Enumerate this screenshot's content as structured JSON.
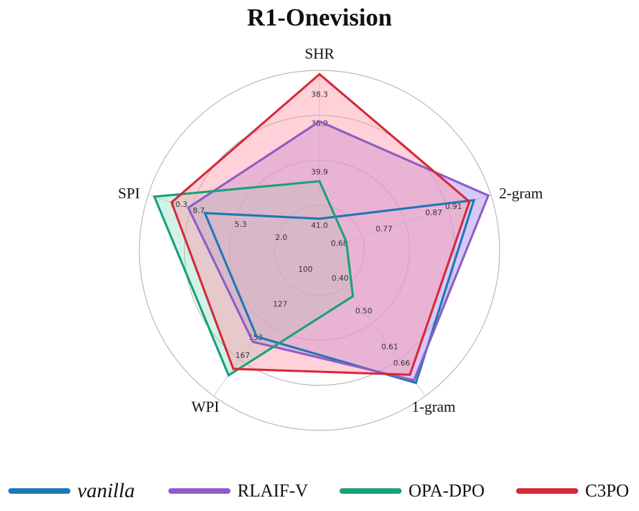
{
  "chart_data": {
    "type": "radar",
    "title": "R1-Onevision",
    "axes": [
      {
        "name": "SHR",
        "min": 41.5,
        "max": 37.8,
        "ticks": [
          "41.0",
          "39.9",
          "38.9",
          "38.3"
        ],
        "tick_values": [
          41.0,
          39.9,
          38.9,
          38.3
        ]
      },
      {
        "name": "2-gram",
        "min": 0.64,
        "max": 0.985,
        "ticks": [
          "0.68",
          "0.77",
          "0.87",
          "0.91"
        ],
        "tick_values": [
          0.68,
          0.77,
          0.87,
          0.91
        ]
      },
      {
        "name": "1-gram",
        "min": 0.313,
        "max": 0.76,
        "ticks": [
          "0.40",
          "0.50",
          "0.61",
          "0.66"
        ],
        "tick_values": [
          0.4,
          0.5,
          0.61,
          0.66
        ]
      },
      {
        "name": "WPI",
        "min": 85,
        "max": 198,
        "ticks": [
          "100",
          "127",
          "153",
          "167"
        ],
        "tick_values": [
          100,
          127,
          153,
          167
        ]
      },
      {
        "name": "SPI",
        "min": -1.1,
        "max": 12.8,
        "ticks": [
          "2.0",
          "5.3",
          "8.7",
          "10.3"
        ],
        "tick_values": [
          2.0,
          5.3,
          8.7,
          10.3
        ]
      }
    ],
    "series": [
      {
        "name": "vanilla",
        "color": "#1f77b4",
        "fill": false,
        "values": [
          40.85,
          0.951,
          0.72,
          152,
          8.2
        ]
      },
      {
        "name": "RLAIF-V",
        "color": "#8e5cc7",
        "fill": true,
        "fill_color": "#b79df0",
        "fill_opacity": 0.55,
        "values": [
          38.85,
          0.98,
          0.712,
          156,
          9.55
        ]
      },
      {
        "name": "OPA-DPO",
        "color": "#1aa07a",
        "fill": true,
        "fill_color": "#88dcc3",
        "fill_opacity": 0.38,
        "values": [
          40.08,
          0.694,
          0.454,
          182,
          12.3
        ]
      },
      {
        "name": "C3PO",
        "color": "#d62939",
        "fill": true,
        "fill_color": "#ff9aa8",
        "fill_opacity": 0.45,
        "values": [
          37.88,
          0.942,
          0.695,
          177,
          10.9
        ]
      }
    ],
    "legend": {
      "position": "bottom",
      "entries": [
        "vanilla",
        "RLAIF-V",
        "OPA-DPO",
        "C3PO"
      ],
      "colors": [
        "#1f77b4",
        "#8e5cc7",
        "#1aa07a",
        "#d62939"
      ]
    },
    "rings": 4,
    "grid": true
  }
}
